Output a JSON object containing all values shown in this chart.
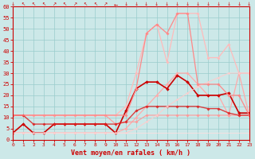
{
  "xlabel": "Vent moyen/en rafales ( km/h )",
  "xlim": [
    0,
    23
  ],
  "ylim": [
    0,
    60
  ],
  "xticks": [
    0,
    1,
    2,
    3,
    4,
    5,
    6,
    7,
    8,
    9,
    10,
    11,
    12,
    13,
    14,
    15,
    16,
    17,
    18,
    19,
    20,
    21,
    22,
    23
  ],
  "yticks": [
    0,
    5,
    10,
    15,
    20,
    25,
    30,
    35,
    40,
    45,
    50,
    55,
    60
  ],
  "bg_color": "#cce8e8",
  "grid_color": "#99cccc",
  "lines": [
    {
      "x": [
        0,
        1,
        2,
        3,
        4,
        5,
        6,
        7,
        8,
        9,
        10,
        11,
        12,
        13,
        14,
        15,
        16,
        17,
        18,
        19,
        20,
        21,
        22,
        23
      ],
      "y": [
        11,
        11,
        11,
        11,
        11,
        11,
        11,
        11,
        11,
        11,
        11,
        15,
        30,
        48,
        52,
        35,
        57,
        57,
        57,
        37,
        37,
        43,
        30,
        30
      ],
      "color": "#ffbbbb",
      "marker": "D",
      "markersize": 1.8,
      "linewidth": 0.9,
      "alpha": 1.0
    },
    {
      "x": [
        0,
        1,
        2,
        3,
        4,
        5,
        6,
        7,
        8,
        9,
        10,
        11,
        12,
        13,
        14,
        15,
        16,
        17,
        18,
        19,
        20,
        21,
        22,
        23
      ],
      "y": [
        3,
        3,
        3,
        3,
        3,
        3,
        3,
        3,
        3,
        3,
        3,
        5,
        10,
        15,
        20,
        25,
        30,
        30,
        25,
        20,
        20,
        11,
        30,
        11
      ],
      "color": "#ffaaaa",
      "marker": "D",
      "markersize": 1.8,
      "linewidth": 0.9,
      "alpha": 1.0
    },
    {
      "x": [
        0,
        1,
        2,
        3,
        4,
        5,
        6,
        7,
        8,
        9,
        10,
        11,
        12,
        13,
        14,
        15,
        16,
        17,
        18,
        19,
        20,
        21,
        22,
        23
      ],
      "y": [
        11,
        11,
        11,
        11,
        11,
        11,
        11,
        11,
        11,
        11,
        7,
        8,
        8,
        11,
        11,
        11,
        11,
        11,
        11,
        11,
        11,
        11,
        11,
        11
      ],
      "color": "#ff9999",
      "marker": "D",
      "markersize": 1.8,
      "linewidth": 0.8,
      "alpha": 1.0
    },
    {
      "x": [
        0,
        1,
        2,
        3,
        4,
        5,
        6,
        7,
        8,
        9,
        10,
        11,
        12,
        13,
        14,
        15,
        16,
        17,
        18,
        19,
        20,
        21,
        22,
        23
      ],
      "y": [
        3,
        7,
        3,
        3,
        7,
        7,
        7,
        7,
        7,
        7,
        3,
        13,
        23,
        26,
        26,
        23,
        29,
        26,
        20,
        20,
        20,
        21,
        12,
        12
      ],
      "color": "#cc0000",
      "marker": "D",
      "markersize": 2.0,
      "linewidth": 1.2,
      "alpha": 1.0
    },
    {
      "x": [
        0,
        1,
        2,
        3,
        4,
        5,
        6,
        7,
        8,
        9,
        10,
        11,
        12,
        13,
        14,
        15,
        16,
        17,
        18,
        19,
        20,
        21,
        22,
        23
      ],
      "y": [
        11,
        11,
        7,
        7,
        7,
        7,
        7,
        7,
        7,
        7,
        7,
        8,
        13,
        15,
        15,
        15,
        15,
        15,
        15,
        14,
        14,
        12,
        11,
        11
      ],
      "color": "#dd2222",
      "marker": "D",
      "markersize": 1.8,
      "linewidth": 1.0,
      "alpha": 0.85
    },
    {
      "x": [
        0,
        1,
        2,
        3,
        4,
        5,
        6,
        7,
        8,
        9,
        10,
        11,
        12,
        13,
        14,
        15,
        16,
        17,
        18,
        19,
        20,
        21,
        22,
        23
      ],
      "y": [
        3,
        3,
        3,
        3,
        3,
        3,
        3,
        3,
        3,
        3,
        3,
        3,
        5,
        8,
        11,
        15,
        18,
        21,
        24,
        26,
        28,
        30,
        30,
        30
      ],
      "color": "#ffcccc",
      "marker": "D",
      "markersize": 1.5,
      "linewidth": 0.8,
      "alpha": 0.9
    },
    {
      "x": [
        0,
        11,
        12,
        13,
        14,
        15,
        16,
        17,
        18,
        19,
        20,
        21,
        22,
        23
      ],
      "y": [
        11,
        11,
        23,
        48,
        52,
        48,
        57,
        57,
        25,
        25,
        25,
        20,
        20,
        11
      ],
      "color": "#ff8888",
      "marker": "D",
      "markersize": 1.8,
      "linewidth": 0.9,
      "alpha": 1.0
    },
    {
      "x": [
        0,
        1,
        2,
        3,
        4,
        5,
        6,
        7,
        8,
        9,
        10,
        11,
        12,
        13,
        14,
        15,
        16,
        17,
        18,
        19,
        20,
        21,
        22,
        23
      ],
      "y": [
        3,
        3,
        3,
        3,
        3,
        3,
        3,
        3,
        3,
        3,
        3,
        3,
        3,
        3,
        3,
        3,
        3,
        3,
        3,
        3,
        3,
        3,
        3,
        3
      ],
      "color": "#ffdddd",
      "marker": null,
      "markersize": 0,
      "linewidth": 0.7,
      "alpha": 0.8
    }
  ],
  "tick_color": "#cc0000",
  "label_color": "#cc0000",
  "axis_color": "#cc0000",
  "wind_arrows": [
    "↓",
    "↖",
    "↖",
    "↖",
    "↗",
    "↖",
    "↗",
    "↖",
    "↖",
    "↗",
    "←",
    "↓",
    "↓",
    "↓",
    "↓",
    "↓",
    "↓",
    "↓",
    "↓",
    "↓",
    "↓",
    "↓",
    "↓",
    "↓"
  ]
}
